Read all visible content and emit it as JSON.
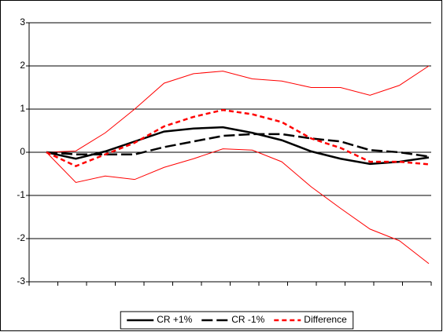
{
  "chart_data": {
    "type": "line",
    "categories": [
      null,
      null,
      null,
      null,
      null,
      null,
      null,
      null,
      null,
      null,
      null,
      null,
      null,
      null
    ],
    "series": [
      {
        "name": "CR +1%",
        "color": "#000000",
        "dash": "solid",
        "values": [
          0,
          -0.15,
          0.02,
          0.25,
          0.48,
          0.55,
          0.58,
          0.45,
          0.28,
          0.02,
          -0.15,
          -0.27,
          -0.22,
          -0.12
        ]
      },
      {
        "name": "CR -1%",
        "color": "#000000",
        "dash": "longdash",
        "values": [
          0,
          -0.05,
          -0.05,
          -0.05,
          0.12,
          0.25,
          0.38,
          0.42,
          0.42,
          0.32,
          0.25,
          0.05,
          0.0,
          -0.1
        ]
      },
      {
        "name": "Difference",
        "color": "#ff0000",
        "dash": "dash",
        "values": [
          0,
          -0.32,
          -0.05,
          0.22,
          0.6,
          0.82,
          0.98,
          0.88,
          0.7,
          0.32,
          0.1,
          -0.22,
          -0.22,
          -0.28
        ]
      }
    ],
    "band": {
      "color": "#ff0000",
      "upper": [
        0,
        0.03,
        0.45,
        1.0,
        1.6,
        1.82,
        1.88,
        1.7,
        1.65,
        1.5,
        1.5,
        1.32,
        1.55,
        2.0
      ],
      "lower": [
        0,
        -0.7,
        -0.55,
        -0.63,
        -0.35,
        -0.15,
        0.08,
        0.05,
        -0.22,
        -0.8,
        -1.3,
        -1.78,
        -2.05,
        -2.58
      ]
    },
    "ylim": [
      -3,
      3
    ],
    "yticks": [
      3,
      2,
      1,
      0,
      -1,
      -2,
      -3
    ],
    "grid": true,
    "legend": "bottom"
  }
}
